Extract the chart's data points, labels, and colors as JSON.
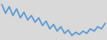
{
  "y": [
    68,
    60,
    66,
    58,
    64,
    56,
    61,
    54,
    58,
    52,
    56,
    49,
    53,
    46,
    50,
    44,
    48,
    42,
    45,
    40,
    43,
    41,
    44,
    42,
    46,
    44,
    48,
    46,
    51
  ],
  "line_color": "#5b9bd5",
  "linewidth": 1.2,
  "background_color": "#d9d9d9",
  "ylim": [
    36,
    72
  ],
  "xlim": [
    -0.5,
    28.5
  ]
}
